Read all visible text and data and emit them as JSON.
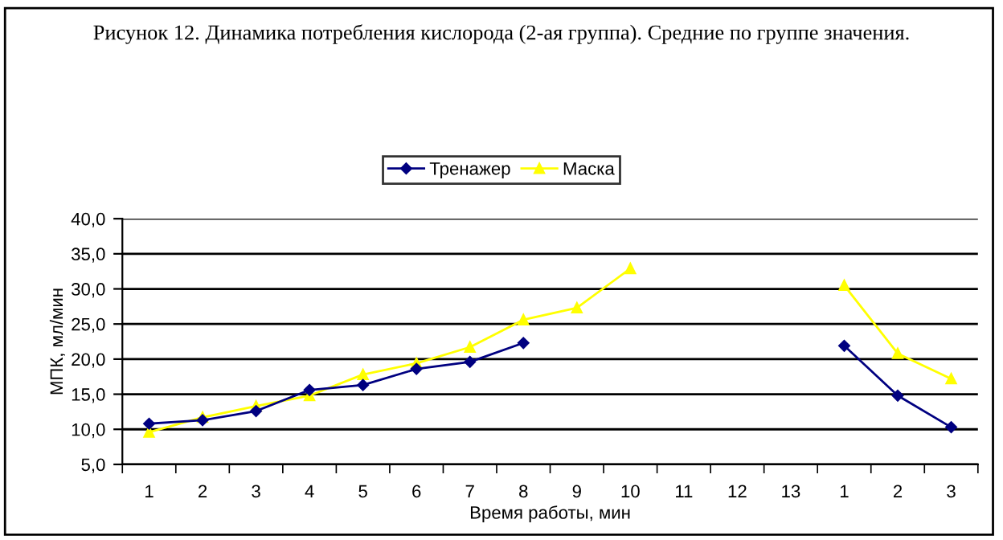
{
  "chart_data": {
    "type": "line",
    "title": "Рисунок 12. Динамика потребления кислорода (2-ая группа). Средние по группе значения.",
    "xlabel": "Время работы, мин",
    "ylabel": "МПК, мл/мин",
    "categories": [
      "1",
      "2",
      "3",
      "4",
      "5",
      "6",
      "7",
      "8",
      "9",
      "10",
      "11",
      "12",
      "13",
      "1",
      "2",
      "3"
    ],
    "series": [
      {
        "name": "Тренажер",
        "color": "#000080",
        "marker": "diamond",
        "values": [
          10.8,
          11.3,
          12.6,
          15.6,
          16.3,
          18.6,
          19.6,
          22.3,
          null,
          null,
          null,
          null,
          null,
          21.9,
          14.8,
          10.3
        ]
      },
      {
        "name": "Маска",
        "color": "#ffff00",
        "marker": "triangle",
        "values": [
          9.6,
          11.7,
          13.3,
          14.8,
          17.8,
          19.4,
          21.7,
          25.6,
          27.3,
          32.9,
          null,
          null,
          null,
          30.5,
          20.8,
          17.2
        ]
      }
    ],
    "ylim": [
      5,
      40
    ],
    "yticks": [
      {
        "value": 5,
        "label": "5,0"
      },
      {
        "value": 10,
        "label": "10,0"
      },
      {
        "value": 15,
        "label": "15,0"
      },
      {
        "value": 20,
        "label": "20,0"
      },
      {
        "value": 25,
        "label": "25,0"
      },
      {
        "value": 30,
        "label": "30,0"
      },
      {
        "value": 35,
        "label": "35,0"
      },
      {
        "value": 40,
        "label": "40,0"
      }
    ],
    "grid": "y",
    "legend": "top"
  }
}
